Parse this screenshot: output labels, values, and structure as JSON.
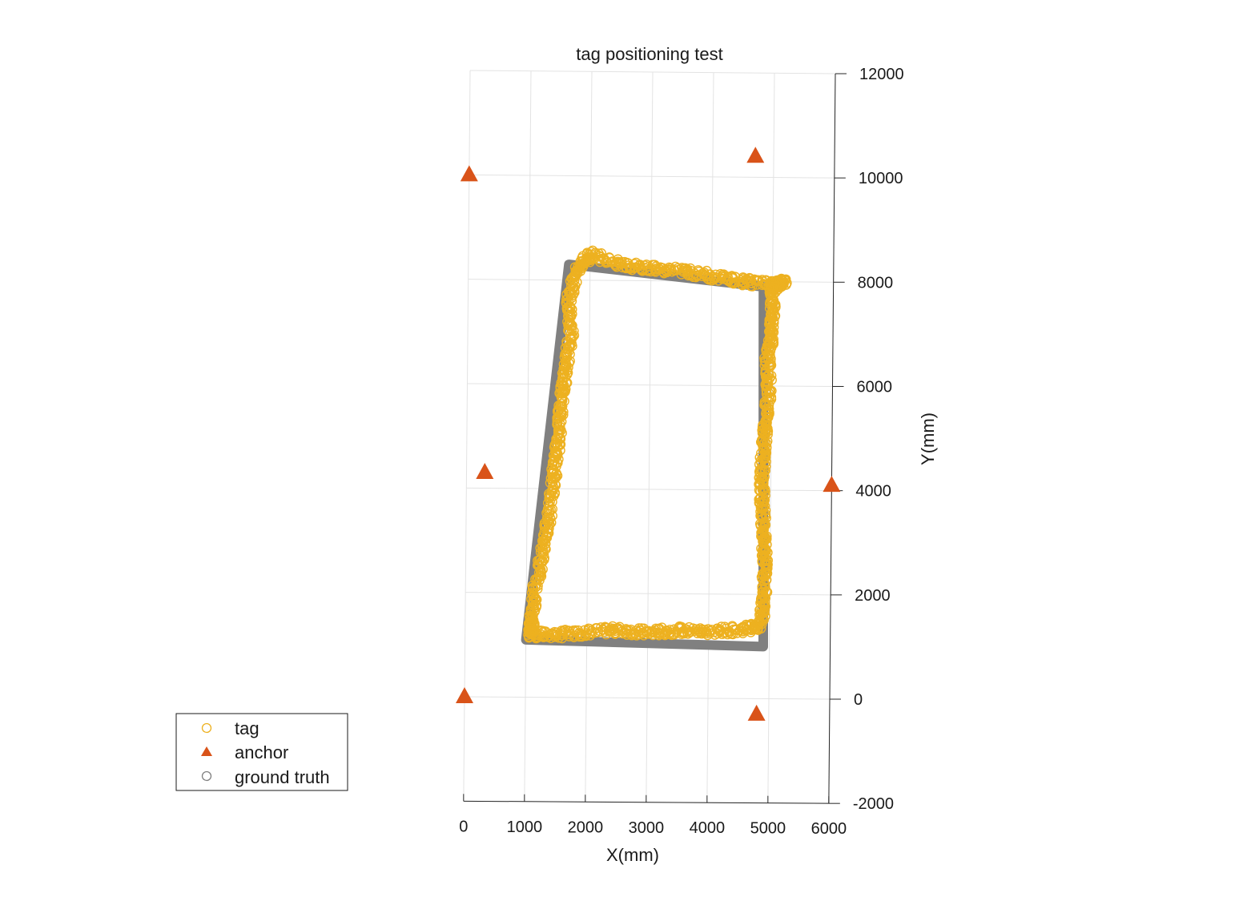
{
  "chart_data": {
    "type": "scatter",
    "title": "tag positioning test",
    "xlabel": "X(mm)",
    "ylabel": "Y(mm)",
    "xlim": [
      0,
      6000
    ],
    "ylim": [
      -2000,
      12000
    ],
    "x_ticks": [
      0,
      1000,
      2000,
      3000,
      4000,
      5000,
      6000
    ],
    "y_ticks": [
      -2000,
      0,
      2000,
      4000,
      6000,
      8000,
      10000,
      12000
    ],
    "x_tick_labels": [
      "0",
      "1000",
      "2000",
      "3000",
      "4000",
      "5000",
      "6000"
    ],
    "y_tick_labels": [
      "-2000",
      "0",
      "2000",
      "4000",
      "6000",
      "8000",
      "10000",
      "12000"
    ],
    "grid": true,
    "legend_position": "bottom-left, outside",
    "colors": {
      "tag": "#EDB120",
      "anchor": "#D95319",
      "ground_truth": "#808080"
    },
    "legend": [
      {
        "key": "tag",
        "label": "tag",
        "marker": "circle-open"
      },
      {
        "key": "anchor",
        "label": "anchor",
        "marker": "triangle"
      },
      {
        "key": "ground_truth",
        "label": "ground truth",
        "marker": "circle-open"
      }
    ],
    "series": [
      {
        "name": "anchor",
        "x": [
          0,
          4700,
          300,
          6000,
          0,
          4800
        ],
        "y": [
          10000,
          10400,
          4300,
          4100,
          0,
          -300
        ]
      },
      {
        "name": "ground truth",
        "x": [
          1000,
          1650,
          4850,
          4900,
          1000
        ],
        "y": [
          1100,
          8300,
          7900,
          1000,
          1100
        ]
      },
      {
        "name": "tag",
        "x": [
          1080,
          1500,
          2000,
          2500,
          3000,
          3500,
          4000,
          4500,
          4850,
          4900,
          4920,
          4900,
          4870,
          4850,
          4880,
          4900,
          4960,
          4930,
          4990,
          5000,
          5000,
          5200,
          4950,
          4500,
          4000,
          3500,
          3000,
          2500,
          2000,
          1800,
          1650,
          1700,
          1620,
          1560,
          1520,
          1480,
          1430,
          1350,
          1270,
          1150,
          1100
        ],
        "y": [
          1200,
          1200,
          1250,
          1300,
          1250,
          1300,
          1280,
          1320,
          1400,
          1900,
          2500,
          3000,
          3600,
          4200,
          4800,
          5300,
          5900,
          6500,
          7000,
          7500,
          7900,
          8000,
          7950,
          8000,
          8100,
          8200,
          8250,
          8300,
          8500,
          8200,
          7600,
          7000,
          6400,
          5800,
          5200,
          4700,
          4100,
          3400,
          2800,
          2100,
          1500
        ]
      }
    ]
  }
}
